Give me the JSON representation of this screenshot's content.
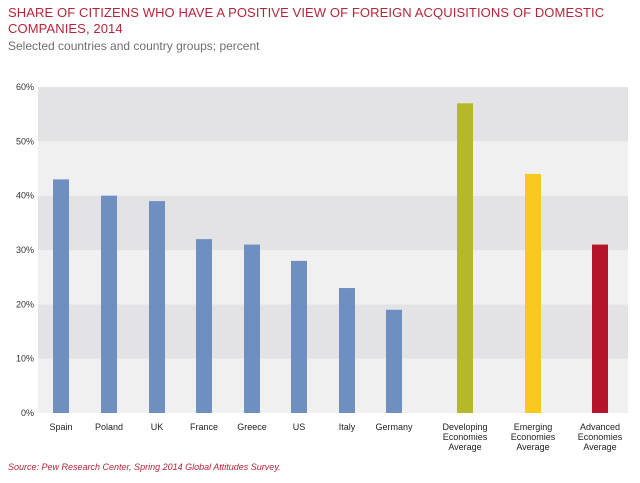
{
  "title": "SHARE OF CITIZENS WHO HAVE A POSITIVE VIEW OF FOREIGN ACQUISITIONS OF DOMESTIC COMPANIES, 2014",
  "subtitle": "Selected countries and country groups; percent",
  "source": "Source: Pew Research Center, Spring 2014 Global Attitudes Survey.",
  "chart_data": {
    "type": "bar",
    "title": "SHARE OF CITIZENS WHO HAVE A POSITIVE VIEW OF FOREIGN ACQUISITIONS OF DOMESTIC COMPANIES, 2014",
    "subtitle": "Selected countries and country groups; percent",
    "xlabel": "",
    "ylabel": "",
    "ylim": [
      0,
      60
    ],
    "yticks": [
      "0%",
      "10%",
      "20%",
      "30%",
      "40%",
      "50%",
      "60%"
    ],
    "categories": [
      "Spain",
      "Poland",
      "UK",
      "France",
      "Greece",
      "US",
      "Italy",
      "Germany",
      "Developing Economies Average",
      "Emerging Economies Average",
      "Advanced Economies Average"
    ],
    "values": [
      43,
      40,
      39,
      32,
      31,
      28,
      23,
      19,
      57,
      44,
      31
    ],
    "colors": [
      "#6f8fc0",
      "#6f8fc0",
      "#6f8fc0",
      "#6f8fc0",
      "#6f8fc0",
      "#6f8fc0",
      "#6f8fc0",
      "#6f8fc0",
      "#b5b82a",
      "#f7c81e",
      "#b5142b"
    ],
    "grid": "alternating horizontal bands",
    "legend": "none"
  }
}
